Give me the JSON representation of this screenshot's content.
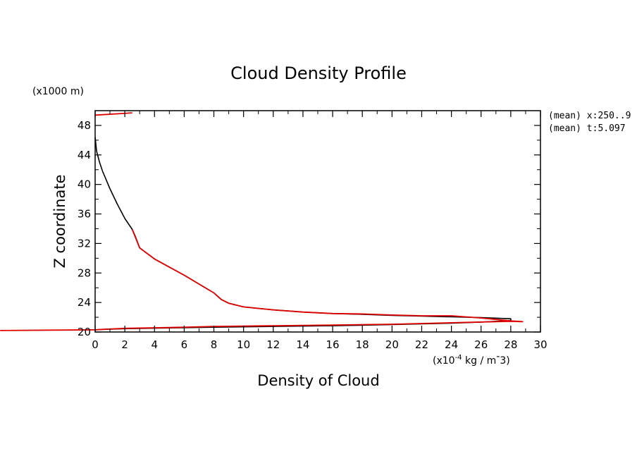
{
  "chart_data": {
    "type": "line",
    "title": "Cloud Density Profile",
    "xlabel": "Density of Cloud",
    "ylabel": "Z coordinate",
    "x_units": {
      "prefix": "(x10",
      "exp": "-4",
      "rest": " kg / m",
      "caret": "-",
      "tail": "3)"
    },
    "y_units": "(x1000 m)",
    "xlim": [
      0,
      30
    ],
    "ylim": [
      20,
      50
    ],
    "xticks": [
      0,
      2,
      4,
      6,
      8,
      10,
      12,
      14,
      16,
      18,
      20,
      22,
      24,
      26,
      28,
      30
    ],
    "yticks": [
      20,
      24,
      28,
      32,
      36,
      40,
      44,
      48
    ],
    "side_labels": [
      "(mean) x:250..9",
      "(mean) t:5.097"
    ],
    "series": [
      {
        "color": "#000000",
        "x": [
          0,
          0.1,
          0.3,
          0.5,
          1.0,
          1.5,
          2.0,
          2.5,
          2.7,
          3.0,
          4.0,
          5.0,
          6.0,
          7.0,
          8.0,
          8.5,
          9.0,
          10.0,
          12.0,
          14.0,
          16.0,
          18.0,
          20.0,
          22.0,
          24.0,
          26.0,
          28.0,
          28.0,
          26.0,
          24.0,
          20.0,
          16.0,
          12.0,
          8.0,
          5.0,
          2.0,
          0.5,
          0
        ],
        "y": [
          46.4,
          44.5,
          43.0,
          41.8,
          39.4,
          37.3,
          35.4,
          33.9,
          33.0,
          31.4,
          29.9,
          28.8,
          27.7,
          26.5,
          25.3,
          24.4,
          23.9,
          23.4,
          23.0,
          22.7,
          22.5,
          22.4,
          22.25,
          22.15,
          22.05,
          21.95,
          21.8,
          21.55,
          21.35,
          21.2,
          21.0,
          20.85,
          20.75,
          20.65,
          20.55,
          20.45,
          20.35,
          20.3
        ]
      },
      {
        "color": "#e00000",
        "x": [
          2.5,
          3.0,
          4.0,
          5.0,
          6.0,
          7.0,
          8.0,
          8.5,
          9.0,
          10.0,
          12.0,
          14.0,
          16.0,
          18.0,
          20.0,
          22.0,
          24.0,
          26.0,
          28.0,
          28.8,
          28.0,
          24.0,
          20.0,
          16.0,
          12.0,
          8.0,
          5.0,
          2.0,
          0.5,
          0,
          -6.4
        ],
        "y": [
          33.9,
          31.4,
          29.9,
          28.8,
          27.7,
          26.5,
          25.3,
          24.4,
          23.9,
          23.4,
          23.0,
          22.7,
          22.5,
          22.45,
          22.3,
          22.2,
          22.2,
          21.9,
          21.5,
          21.4,
          21.45,
          21.25,
          21.05,
          20.95,
          20.85,
          20.75,
          20.6,
          20.5,
          20.35,
          20.3,
          20.2
        ]
      },
      {
        "color": "#e00000",
        "x": [
          0,
          2.5
        ],
        "y": [
          49.4,
          49.7
        ]
      }
    ]
  }
}
